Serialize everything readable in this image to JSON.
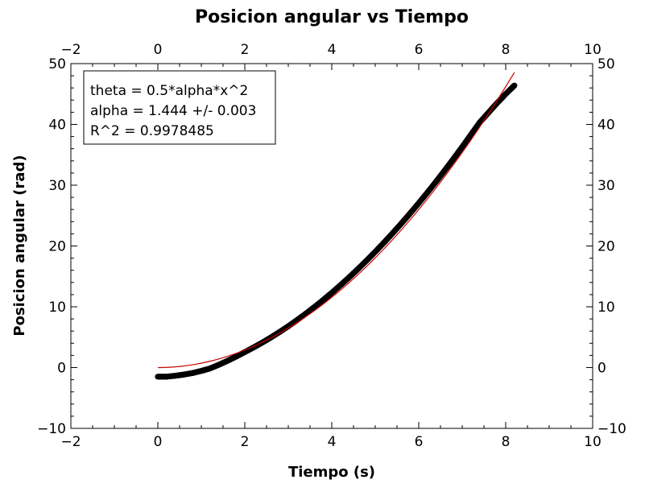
{
  "chart_data": {
    "type": "scatter",
    "title": "Posicion angular vs Tiempo",
    "xlabel": "Tiempo (s)",
    "ylabel": "Posicion angular (rad)",
    "xlim": [
      -2,
      10
    ],
    "ylim": [
      -10,
      50
    ],
    "x_major_ticks": [
      -2,
      0,
      2,
      4,
      6,
      8,
      10
    ],
    "y_major_ticks": [
      -10,
      0,
      10,
      20,
      30,
      40,
      50
    ],
    "x_tick_labels": [
      "−2",
      "0",
      "2",
      "4",
      "6",
      "8",
      "10"
    ],
    "y_tick_labels": [
      "−10",
      "0",
      "10",
      "20",
      "30",
      "40",
      "50"
    ],
    "mirror_axes": true,
    "grid": false,
    "series": [
      {
        "kind": "scatter",
        "color": "#000000",
        "x": [
          0.0,
          0.2,
          0.4,
          0.6,
          0.8,
          1.0,
          1.2,
          1.4,
          1.6,
          1.8,
          2.0,
          2.2,
          2.4,
          2.6,
          2.8,
          3.0,
          3.2,
          3.4,
          3.6,
          3.8,
          4.0,
          4.2,
          4.4,
          4.6,
          4.8,
          5.0,
          5.2,
          5.4,
          5.6,
          5.8,
          6.0,
          6.2,
          6.4,
          6.6,
          6.8,
          7.0,
          7.2,
          7.4,
          7.6,
          7.8,
          8.0,
          8.2
        ],
        "y": [
          -1.5,
          -1.5,
          -1.35,
          -1.15,
          -0.9,
          -0.55,
          -0.15,
          0.45,
          1.1,
          1.8,
          2.55,
          3.3,
          4.1,
          4.95,
          5.85,
          6.8,
          7.8,
          8.85,
          9.95,
          11.1,
          12.3,
          13.55,
          14.85,
          16.2,
          17.6,
          19.05,
          20.55,
          22.1,
          23.7,
          25.35,
          27.05,
          28.8,
          30.6,
          32.45,
          34.35,
          36.3,
          38.3,
          40.3,
          41.9,
          43.5,
          45.0,
          46.4
        ]
      },
      {
        "kind": "fit_line",
        "color": "#cc0000",
        "equation": "theta = 0.5*alpha*x^2",
        "alpha": 1.444,
        "x_range": [
          0,
          8.2
        ]
      }
    ],
    "legend": {
      "placement": "top-left",
      "lines": [
        "theta = 0.5*alpha*x^2",
        "alpha = 1.444 +/- 0.003",
        "R^2 = 0.9978485"
      ]
    }
  }
}
